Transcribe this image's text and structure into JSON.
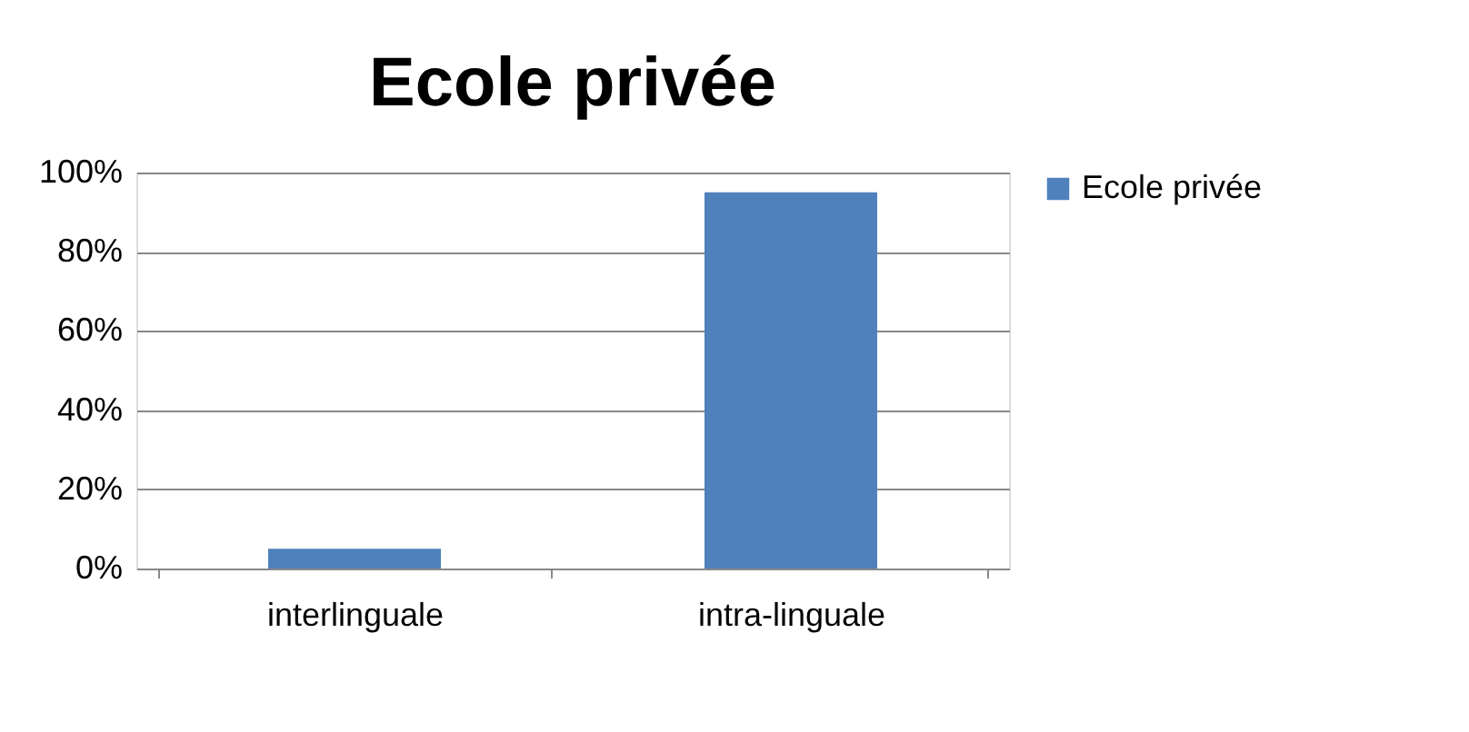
{
  "chart_data": {
    "type": "bar",
    "title": "Ecole privée",
    "categories": [
      "interlinguale",
      "intra-linguale"
    ],
    "series": [
      {
        "name": "Ecole privée",
        "color": "#4f81bd",
        "values": [
          5,
          95
        ]
      }
    ],
    "ylim": [
      0,
      100
    ],
    "yticks": [
      {
        "value": 0,
        "label": "0%"
      },
      {
        "value": 20,
        "label": "20%"
      },
      {
        "value": 40,
        "label": "40%"
      },
      {
        "value": 60,
        "label": "60%"
      },
      {
        "value": 80,
        "label": "80%"
      },
      {
        "value": 100,
        "label": "100%"
      }
    ],
    "grid": "y",
    "legend": "right"
  }
}
